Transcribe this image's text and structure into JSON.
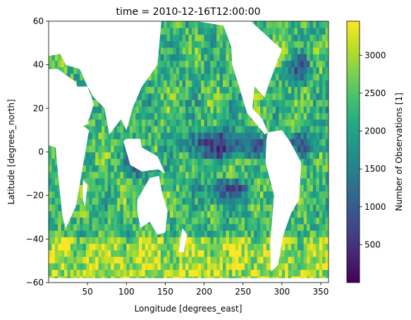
{
  "chart_data": {
    "type": "heatmap",
    "title": "time = 2010-12-16T12:00:00",
    "xlabel": "Longitude [degrees_east]",
    "ylabel": "Latitude [degrees_north]",
    "xlim": [
      0,
      360
    ],
    "ylim": [
      -60,
      60
    ],
    "xticks": [
      50,
      100,
      150,
      200,
      250,
      300,
      350
    ],
    "yticks": [
      -60,
      -40,
      -20,
      0,
      20,
      40,
      60
    ],
    "colorbar": {
      "label": "Number of Observations [1]",
      "colormap": "viridis",
      "vmin": 0,
      "vmax": 3450,
      "ticks": [
        500,
        1000,
        1500,
        2000,
        2500,
        3000
      ]
    },
    "land_color": "#ffffff",
    "features": [
      {
        "desc": "low-count equatorial band Pacific",
        "lon": [
          160,
          290
        ],
        "lat": [
          -2,
          9
        ],
        "value": 700
      },
      {
        "desc": "low-count band south Pacific",
        "lon": [
          190,
          270
        ],
        "lat": [
          -22,
          -14
        ],
        "value": 1100
      },
      {
        "desc": "low-count Indonesian region",
        "lon": [
          95,
          140
        ],
        "lat": [
          -10,
          0
        ],
        "value": 900
      },
      {
        "desc": "low-count north Pacific gyre",
        "lon": [
          305,
          335
        ],
        "lat": [
          30,
          45
        ],
        "value": 1300
      },
      {
        "desc": "low-count Atlantic equator",
        "lon": [
          300,
          360
        ],
        "lat": [
          0,
          8
        ],
        "value": 1300
      },
      {
        "desc": "high-count southern ocean",
        "lon": [
          0,
          360
        ],
        "lat": [
          -60,
          -40
        ],
        "value": 3000
      }
    ]
  }
}
